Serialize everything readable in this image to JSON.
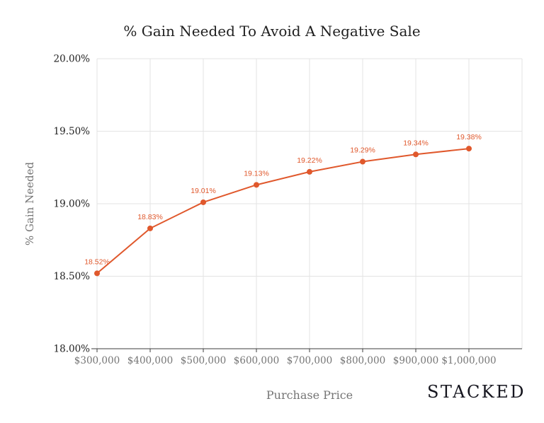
{
  "brand": "STACKED",
  "chart_data": {
    "type": "line",
    "title": "% Gain Needed To Avoid A Negative Sale",
    "xlabel": "Purchase Price",
    "ylabel": "% Gain Needed",
    "categories": [
      "$300,000",
      "$400,000",
      "$500,000",
      "$600,000",
      "$700,000",
      "$800,000",
      "$900,000",
      "$1,000,000"
    ],
    "series": [
      {
        "name": "% Gain Needed",
        "values": [
          18.52,
          18.83,
          19.01,
          19.13,
          19.22,
          19.29,
          19.34,
          19.38
        ],
        "point_labels": [
          "18.52%",
          "18.83%",
          "19.01%",
          "19.13%",
          "19.22%",
          "19.29%",
          "19.34%",
          "19.38%"
        ]
      }
    ],
    "ylim": [
      18.0,
      20.0
    ],
    "y_ticks": [
      {
        "value": 18.0,
        "label": "18.00%"
      },
      {
        "value": 18.5,
        "label": "18.50%"
      },
      {
        "value": 19.0,
        "label": "19.00%"
      },
      {
        "value": 19.5,
        "label": "19.50%"
      },
      {
        "value": 20.0,
        "label": "20.00%"
      }
    ],
    "grid": true,
    "legend": "none",
    "colors": {
      "series": "#e0582c",
      "gridline": "#e3e3e3",
      "axis_line": "#3d3d3d",
      "y_tick_text": "#212121",
      "x_tick_text": "#757575",
      "title_text": "#1f1f1f",
      "axis_title_text": "#757575",
      "brand_text": "#16161f",
      "background": "#ffffff"
    }
  }
}
